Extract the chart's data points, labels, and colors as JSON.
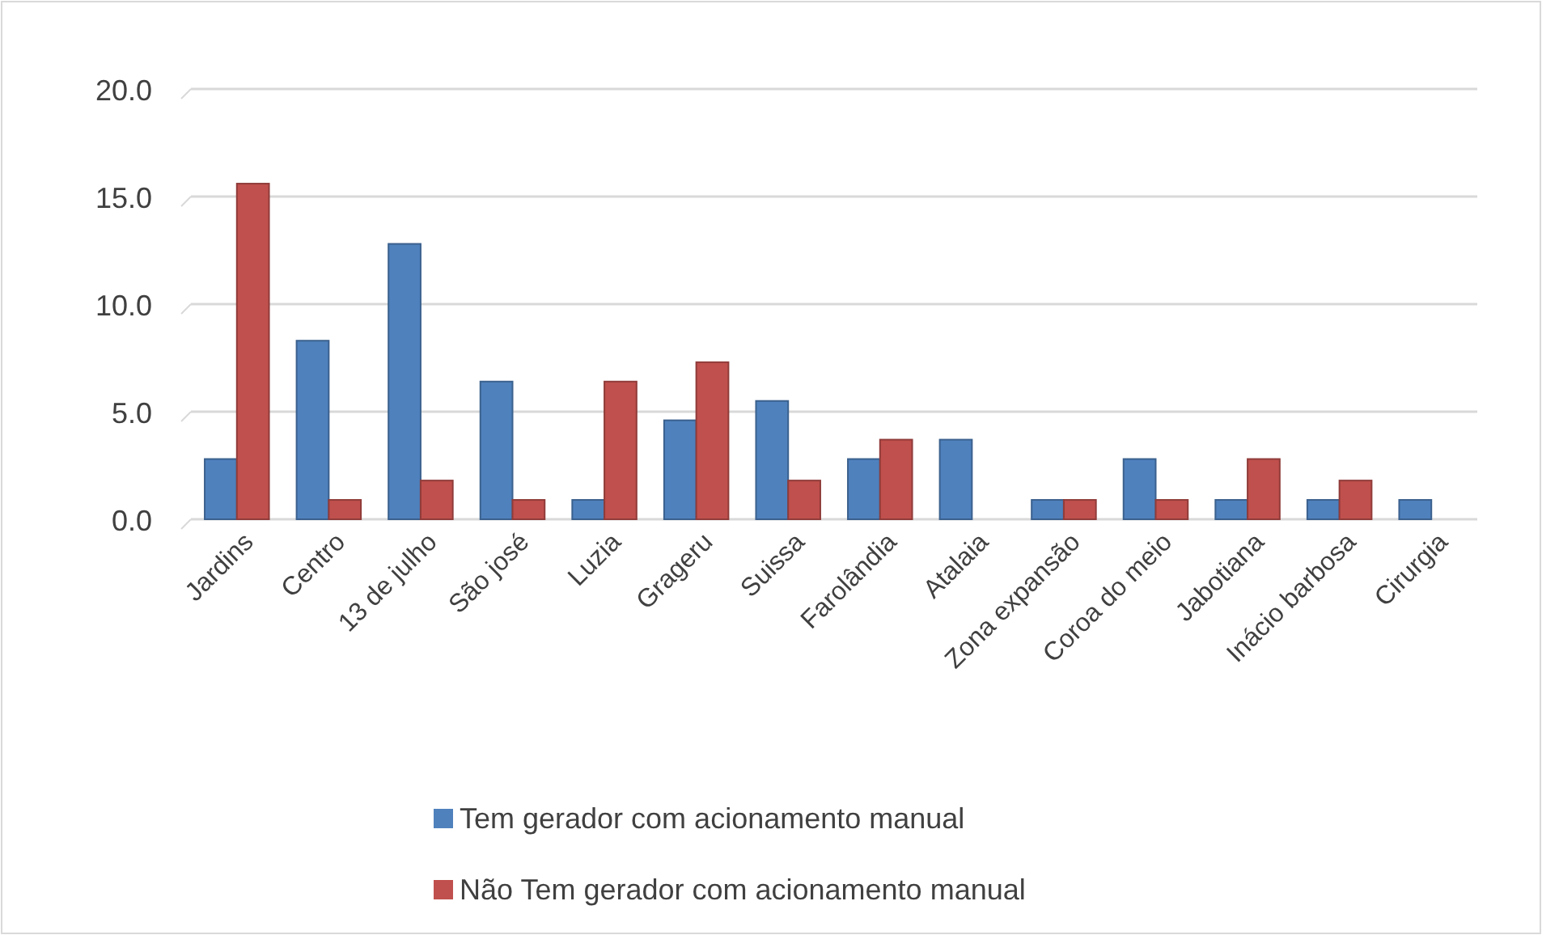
{
  "chart_data": {
    "type": "bar",
    "categories": [
      "Jardins",
      "Centro",
      "13 de julho",
      "São josé",
      "Luzia",
      "Grageru",
      "Suissa",
      "Farolândia",
      "Atalaia",
      "Zona expansão",
      "Coroa do meio",
      "Jabotiana",
      "Inácio barbosa",
      "Cirurgia"
    ],
    "series": [
      {
        "name": "Tem gerador com acionamento manual",
        "color": "#4f81bd",
        "values": [
          2.8,
          8.3,
          12.8,
          6.4,
          0.9,
          4.6,
          5.5,
          2.8,
          3.7,
          0.9,
          2.8,
          0.9,
          0.9,
          0.9
        ]
      },
      {
        "name": "Não Tem gerador com acionamento manual",
        "color": "#c0504d",
        "values": [
          15.6,
          0.9,
          1.8,
          0.9,
          6.4,
          7.3,
          1.8,
          3.7,
          0,
          0.9,
          0.9,
          2.8,
          1.8,
          0
        ]
      }
    ],
    "ylim": [
      0,
      20
    ],
    "yticks": [
      {
        "value": 0,
        "label": "0.0"
      },
      {
        "value": 5,
        "label": "5.0"
      },
      {
        "value": 10,
        "label": "10.0"
      },
      {
        "value": 15,
        "label": "15.0"
      },
      {
        "value": 20,
        "label": "20.0"
      }
    ],
    "grid": "y",
    "legend": "bottom"
  }
}
